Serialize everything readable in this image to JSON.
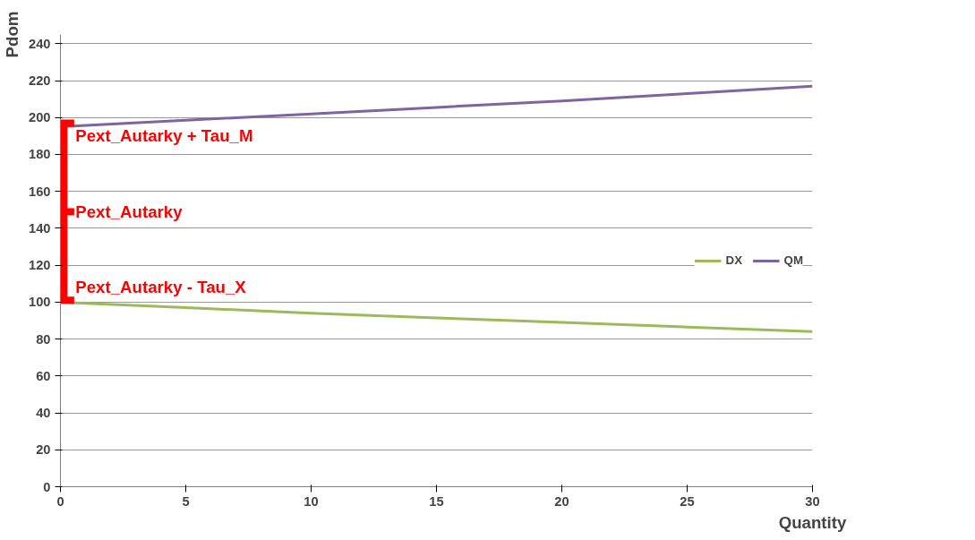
{
  "chart_data": {
    "type": "line",
    "xlabel": "Quantity",
    "ylabel": "Pdom",
    "xlim": [
      0,
      30
    ],
    "ylim": [
      0,
      245
    ],
    "xticks": [
      0,
      5,
      10,
      15,
      20,
      25,
      30
    ],
    "yticks": [
      0,
      20,
      40,
      60,
      80,
      100,
      120,
      140,
      160,
      180,
      200,
      220,
      240
    ],
    "grid": "y",
    "legend": "right",
    "marker": "none",
    "line_style": "solid",
    "series": [
      {
        "name": "DX",
        "color": "#9bbb59",
        "x": [
          0,
          5,
          10,
          15,
          20,
          25,
          30
        ],
        "values": [
          100,
          97,
          94,
          91.5,
          89,
          86.5,
          84
        ]
      },
      {
        "name": "QM",
        "color": "#8064a2",
        "x": [
          0,
          5,
          10,
          15,
          20,
          25,
          30
        ],
        "values": [
          195,
          198.5,
          202,
          205.5,
          209,
          213,
          217
        ]
      }
    ],
    "annotations": [
      {
        "text": "Pext_Autarky + Tau_M",
        "x": 0,
        "y": 197
      },
      "Pext_Autarky",
      {
        "text": "Pext_Autarky - Tau_X",
        "x": 0,
        "y": 101
      }
    ]
  }
}
